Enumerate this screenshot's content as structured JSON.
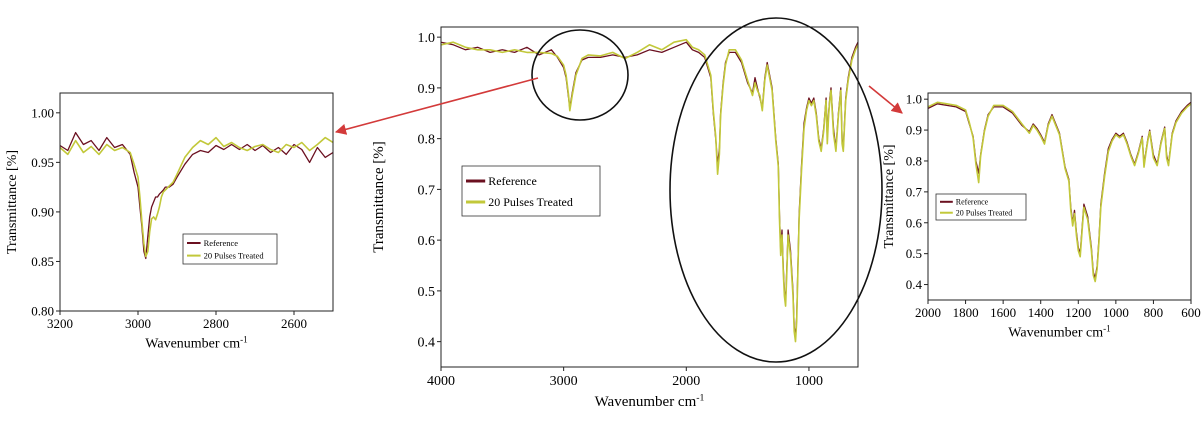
{
  "colors": {
    "reference": "#6b1020",
    "treated": "#c2c83a",
    "arrow": "#d33a3a",
    "ellipse": "#111111"
  },
  "chart_data": [
    {
      "id": "left",
      "type": "line",
      "xlabel": "Wavenumber cm",
      "xlabel_sup": "-1",
      "ylabel": "Transmittance [%]",
      "xlim": [
        3200,
        2500
      ],
      "ylim": [
        0.8,
        1.02
      ],
      "xticks": [
        3200,
        3000,
        2800,
        2600
      ],
      "xtick_labels": [
        "3200",
        "3000",
        "2800",
        "2600"
      ],
      "yticks": [
        0.8,
        0.85,
        0.9,
        0.95,
        1.0
      ],
      "ytick_labels": [
        "0.80",
        "0.85",
        "0.90",
        "0.95",
        "1.00"
      ],
      "legend": {
        "position": "lower-right",
        "entries": [
          "Reference",
          "20 Pulses Treated"
        ]
      },
      "series": [
        {
          "name": "Reference",
          "x": [
            3200,
            3180,
            3160,
            3140,
            3120,
            3100,
            3080,
            3060,
            3040,
            3020,
            3010,
            3000,
            2995,
            2990,
            2985,
            2980,
            2975,
            2970,
            2965,
            2960,
            2955,
            2950,
            2945,
            2940,
            2935,
            2930,
            2920,
            2910,
            2900,
            2880,
            2860,
            2840,
            2820,
            2800,
            2780,
            2760,
            2740,
            2720,
            2700,
            2680,
            2660,
            2640,
            2620,
            2600,
            2580,
            2560,
            2540,
            2520,
            2500
          ],
          "y": [
            0.967,
            0.962,
            0.98,
            0.968,
            0.972,
            0.962,
            0.975,
            0.965,
            0.968,
            0.958,
            0.94,
            0.925,
            0.905,
            0.885,
            0.86,
            0.853,
            0.875,
            0.895,
            0.905,
            0.91,
            0.915,
            0.915,
            0.918,
            0.92,
            0.922,
            0.925,
            0.925,
            0.928,
            0.935,
            0.948,
            0.958,
            0.962,
            0.96,
            0.967,
            0.963,
            0.968,
            0.963,
            0.968,
            0.962,
            0.967,
            0.96,
            0.965,
            0.958,
            0.968,
            0.963,
            0.95,
            0.965,
            0.955,
            0.96
          ]
        },
        {
          "name": "20 Pulses Treated",
          "x": [
            3200,
            3180,
            3160,
            3140,
            3120,
            3100,
            3080,
            3060,
            3040,
            3020,
            3010,
            3000,
            2995,
            2990,
            2985,
            2980,
            2975,
            2970,
            2965,
            2960,
            2955,
            2950,
            2945,
            2940,
            2935,
            2930,
            2920,
            2910,
            2900,
            2880,
            2860,
            2840,
            2820,
            2800,
            2780,
            2760,
            2740,
            2720,
            2700,
            2680,
            2660,
            2640,
            2620,
            2600,
            2580,
            2560,
            2540,
            2520,
            2500
          ],
          "y": [
            0.965,
            0.958,
            0.972,
            0.96,
            0.966,
            0.958,
            0.968,
            0.962,
            0.965,
            0.96,
            0.948,
            0.935,
            0.915,
            0.89,
            0.868,
            0.855,
            0.86,
            0.88,
            0.893,
            0.895,
            0.892,
            0.898,
            0.905,
            0.915,
            0.92,
            0.922,
            0.926,
            0.93,
            0.938,
            0.955,
            0.965,
            0.972,
            0.968,
            0.975,
            0.966,
            0.97,
            0.965,
            0.962,
            0.966,
            0.968,
            0.963,
            0.96,
            0.968,
            0.965,
            0.97,
            0.962,
            0.968,
            0.975,
            0.97
          ]
        }
      ]
    },
    {
      "id": "center",
      "type": "line",
      "xlabel": "Wavenumber cm",
      "xlabel_sup": "-1",
      "ylabel": "Transmittance [%]",
      "xlim": [
        4000,
        600
      ],
      "ylim": [
        0.35,
        1.02
      ],
      "xticks": [
        4000,
        3000,
        2000,
        1000
      ],
      "xtick_labels": [
        "4000",
        "3000",
        "2000",
        "1000"
      ],
      "yticks": [
        0.4,
        0.5,
        0.6,
        0.7,
        0.8,
        0.9,
        1.0
      ],
      "ytick_labels": [
        "0.4",
        "0.5",
        "0.6",
        "0.7",
        "0.8",
        "0.9",
        "1.0"
      ],
      "legend": {
        "position": "center-left",
        "entries": [
          "Reference",
          "20 Pulses Treated"
        ]
      },
      "series": [
        {
          "name": "Reference",
          "x": [
            4000,
            3900,
            3800,
            3700,
            3600,
            3500,
            3400,
            3300,
            3200,
            3100,
            3050,
            3000,
            2980,
            2960,
            2950,
            2930,
            2900,
            2850,
            2800,
            2700,
            2600,
            2500,
            2400,
            2300,
            2200,
            2100,
            2000,
            1950,
            1900,
            1850,
            1800,
            1780,
            1760,
            1745,
            1730,
            1720,
            1700,
            1680,
            1650,
            1600,
            1550,
            1500,
            1460,
            1440,
            1420,
            1400,
            1380,
            1360,
            1340,
            1300,
            1270,
            1250,
            1240,
            1230,
            1220,
            1210,
            1200,
            1190,
            1180,
            1170,
            1150,
            1130,
            1120,
            1110,
            1100,
            1090,
            1080,
            1060,
            1040,
            1020,
            1000,
            980,
            960,
            940,
            920,
            900,
            880,
            860,
            850,
            840,
            830,
            820,
            800,
            780,
            760,
            740,
            730,
            720,
            700,
            680,
            650,
            620,
            600
          ],
          "y": [
            0.99,
            0.985,
            0.975,
            0.98,
            0.97,
            0.975,
            0.97,
            0.98,
            0.965,
            0.975,
            0.96,
            0.94,
            0.92,
            0.88,
            0.86,
            0.89,
            0.93,
            0.955,
            0.96,
            0.96,
            0.965,
            0.96,
            0.965,
            0.975,
            0.97,
            0.98,
            0.99,
            0.975,
            0.97,
            0.96,
            0.92,
            0.85,
            0.8,
            0.75,
            0.78,
            0.85,
            0.91,
            0.95,
            0.97,
            0.97,
            0.95,
            0.91,
            0.89,
            0.92,
            0.9,
            0.88,
            0.86,
            0.92,
            0.95,
            0.9,
            0.8,
            0.75,
            0.65,
            0.58,
            0.62,
            0.55,
            0.5,
            0.48,
            0.55,
            0.62,
            0.58,
            0.5,
            0.43,
            0.41,
            0.45,
            0.55,
            0.65,
            0.75,
            0.83,
            0.86,
            0.88,
            0.87,
            0.88,
            0.85,
            0.8,
            0.78,
            0.82,
            0.88,
            0.8,
            0.85,
            0.88,
            0.9,
            0.82,
            0.78,
            0.85,
            0.9,
            0.8,
            0.78,
            0.88,
            0.92,
            0.96,
            0.98,
            0.99
          ]
        },
        {
          "name": "20 Pulses Treated",
          "x": [
            4000,
            3900,
            3800,
            3700,
            3600,
            3500,
            3400,
            3300,
            3200,
            3100,
            3050,
            3000,
            2980,
            2960,
            2950,
            2930,
            2900,
            2850,
            2800,
            2700,
            2600,
            2500,
            2400,
            2300,
            2200,
            2100,
            2000,
            1950,
            1900,
            1850,
            1800,
            1780,
            1760,
            1745,
            1730,
            1720,
            1700,
            1680,
            1650,
            1600,
            1550,
            1500,
            1460,
            1440,
            1420,
            1400,
            1380,
            1360,
            1340,
            1300,
            1270,
            1250,
            1240,
            1230,
            1220,
            1210,
            1200,
            1190,
            1180,
            1170,
            1150,
            1130,
            1120,
            1110,
            1100,
            1090,
            1080,
            1060,
            1040,
            1020,
            1000,
            980,
            960,
            940,
            920,
            900,
            880,
            860,
            850,
            840,
            830,
            820,
            800,
            780,
            760,
            740,
            730,
            720,
            700,
            680,
            650,
            620,
            600
          ],
          "y": [
            0.985,
            0.99,
            0.98,
            0.975,
            0.975,
            0.97,
            0.975,
            0.97,
            0.97,
            0.968,
            0.962,
            0.945,
            0.925,
            0.885,
            0.855,
            0.885,
            0.925,
            0.958,
            0.965,
            0.963,
            0.97,
            0.958,
            0.97,
            0.985,
            0.975,
            0.99,
            0.995,
            0.98,
            0.975,
            0.965,
            0.925,
            0.855,
            0.805,
            0.73,
            0.77,
            0.845,
            0.905,
            0.945,
            0.975,
            0.975,
            0.955,
            0.915,
            0.885,
            0.91,
            0.895,
            0.885,
            0.855,
            0.915,
            0.945,
            0.895,
            0.795,
            0.745,
            0.64,
            0.57,
            0.61,
            0.54,
            0.49,
            0.47,
            0.54,
            0.61,
            0.57,
            0.49,
            0.42,
            0.4,
            0.44,
            0.54,
            0.64,
            0.74,
            0.82,
            0.855,
            0.875,
            0.865,
            0.875,
            0.845,
            0.795,
            0.775,
            0.815,
            0.875,
            0.79,
            0.845,
            0.875,
            0.895,
            0.81,
            0.775,
            0.845,
            0.895,
            0.79,
            0.775,
            0.875,
            0.915,
            0.955,
            0.975,
            0.985
          ]
        }
      ]
    },
    {
      "id": "right",
      "type": "line",
      "xlabel": "Wavenumber cm",
      "xlabel_sup": "-1",
      "ylabel": "Transmittance [%]",
      "xlim": [
        2000,
        600
      ],
      "ylim": [
        0.35,
        1.02
      ],
      "xticks": [
        2000,
        1800,
        1600,
        1400,
        1200,
        1000,
        800,
        600
      ],
      "xtick_labels": [
        "2000",
        "1800",
        "1600",
        "1400",
        "1200",
        "1000",
        "800",
        "600"
      ],
      "yticks": [
        0.4,
        0.5,
        0.6,
        0.7,
        0.8,
        0.9,
        1.0
      ],
      "ytick_labels": [
        "0.4",
        "0.5",
        "0.6",
        "0.7",
        "0.8",
        "0.9",
        "1.0"
      ],
      "legend": {
        "position": "center-left",
        "entries": [
          "Reference",
          "20 Pulses Treated"
        ]
      },
      "series": [
        {
          "name": "Reference",
          "x": [
            2000,
            1950,
            1900,
            1850,
            1800,
            1780,
            1760,
            1745,
            1730,
            1720,
            1700,
            1680,
            1650,
            1600,
            1550,
            1500,
            1460,
            1440,
            1420,
            1400,
            1380,
            1360,
            1340,
            1300,
            1270,
            1250,
            1240,
            1230,
            1220,
            1210,
            1200,
            1190,
            1180,
            1170,
            1150,
            1130,
            1120,
            1110,
            1100,
            1090,
            1080,
            1060,
            1040,
            1020,
            1000,
            980,
            960,
            940,
            920,
            900,
            880,
            860,
            850,
            840,
            830,
            820,
            800,
            780,
            760,
            740,
            730,
            720,
            700,
            680,
            650,
            620,
            600
          ],
          "y": [
            0.97,
            0.985,
            0.98,
            0.975,
            0.96,
            0.92,
            0.88,
            0.8,
            0.76,
            0.82,
            0.9,
            0.95,
            0.975,
            0.975,
            0.955,
            0.915,
            0.895,
            0.92,
            0.905,
            0.885,
            0.86,
            0.92,
            0.95,
            0.89,
            0.78,
            0.74,
            0.65,
            0.6,
            0.64,
            0.57,
            0.52,
            0.5,
            0.58,
            0.66,
            0.62,
            0.52,
            0.44,
            0.42,
            0.46,
            0.55,
            0.66,
            0.76,
            0.84,
            0.87,
            0.89,
            0.88,
            0.89,
            0.86,
            0.82,
            0.79,
            0.83,
            0.88,
            0.79,
            0.83,
            0.87,
            0.9,
            0.82,
            0.79,
            0.86,
            0.91,
            0.82,
            0.79,
            0.89,
            0.93,
            0.96,
            0.98,
            0.99
          ]
        },
        {
          "name": "20 Pulses Treated",
          "x": [
            2000,
            1950,
            1900,
            1850,
            1800,
            1780,
            1760,
            1745,
            1730,
            1720,
            1700,
            1680,
            1650,
            1600,
            1550,
            1500,
            1460,
            1440,
            1420,
            1400,
            1380,
            1360,
            1340,
            1300,
            1270,
            1250,
            1240,
            1230,
            1220,
            1210,
            1200,
            1190,
            1180,
            1170,
            1150,
            1130,
            1120,
            1110,
            1100,
            1090,
            1080,
            1060,
            1040,
            1020,
            1000,
            980,
            960,
            940,
            920,
            900,
            880,
            860,
            850,
            840,
            830,
            820,
            800,
            780,
            760,
            740,
            730,
            720,
            700,
            680,
            650,
            620,
            600
          ],
          "y": [
            0.975,
            0.99,
            0.985,
            0.98,
            0.965,
            0.925,
            0.875,
            0.79,
            0.73,
            0.815,
            0.895,
            0.945,
            0.98,
            0.98,
            0.96,
            0.92,
            0.89,
            0.915,
            0.9,
            0.88,
            0.855,
            0.915,
            0.945,
            0.885,
            0.775,
            0.735,
            0.64,
            0.59,
            0.63,
            0.56,
            0.51,
            0.49,
            0.57,
            0.65,
            0.61,
            0.51,
            0.43,
            0.41,
            0.45,
            0.54,
            0.65,
            0.75,
            0.83,
            0.865,
            0.885,
            0.875,
            0.885,
            0.855,
            0.815,
            0.785,
            0.825,
            0.875,
            0.78,
            0.825,
            0.865,
            0.895,
            0.81,
            0.785,
            0.855,
            0.905,
            0.81,
            0.785,
            0.885,
            0.925,
            0.955,
            0.975,
            0.985
          ]
        }
      ]
    }
  ]
}
